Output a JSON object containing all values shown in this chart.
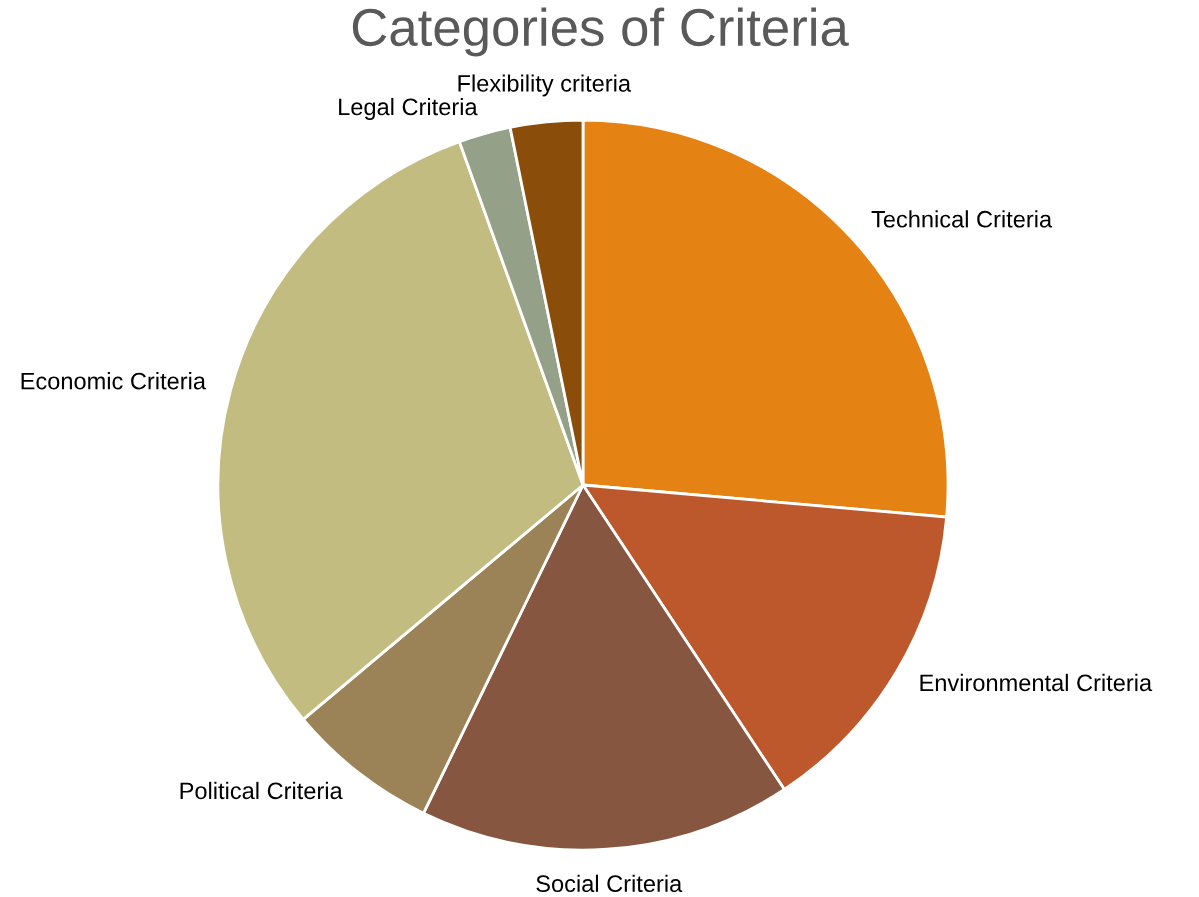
{
  "chart_data": {
    "type": "pie",
    "title": "Categories of Criteria",
    "categories": [
      "Technical Criteria",
      "Environmental Criteria",
      "Social Criteria",
      "Political Criteria",
      "Economic Criteria",
      "Legal Criteria",
      "Flexibility criteria"
    ],
    "values": [
      26.4,
      14.3,
      16.5,
      6.7,
      30.6,
      2.3,
      3.2
    ],
    "colors": [
      "#e48213",
      "#bd582c",
      "#865640",
      "#9b8357",
      "#c3bc80",
      "#94a088",
      "#8b4e0a"
    ],
    "legend": false
  }
}
